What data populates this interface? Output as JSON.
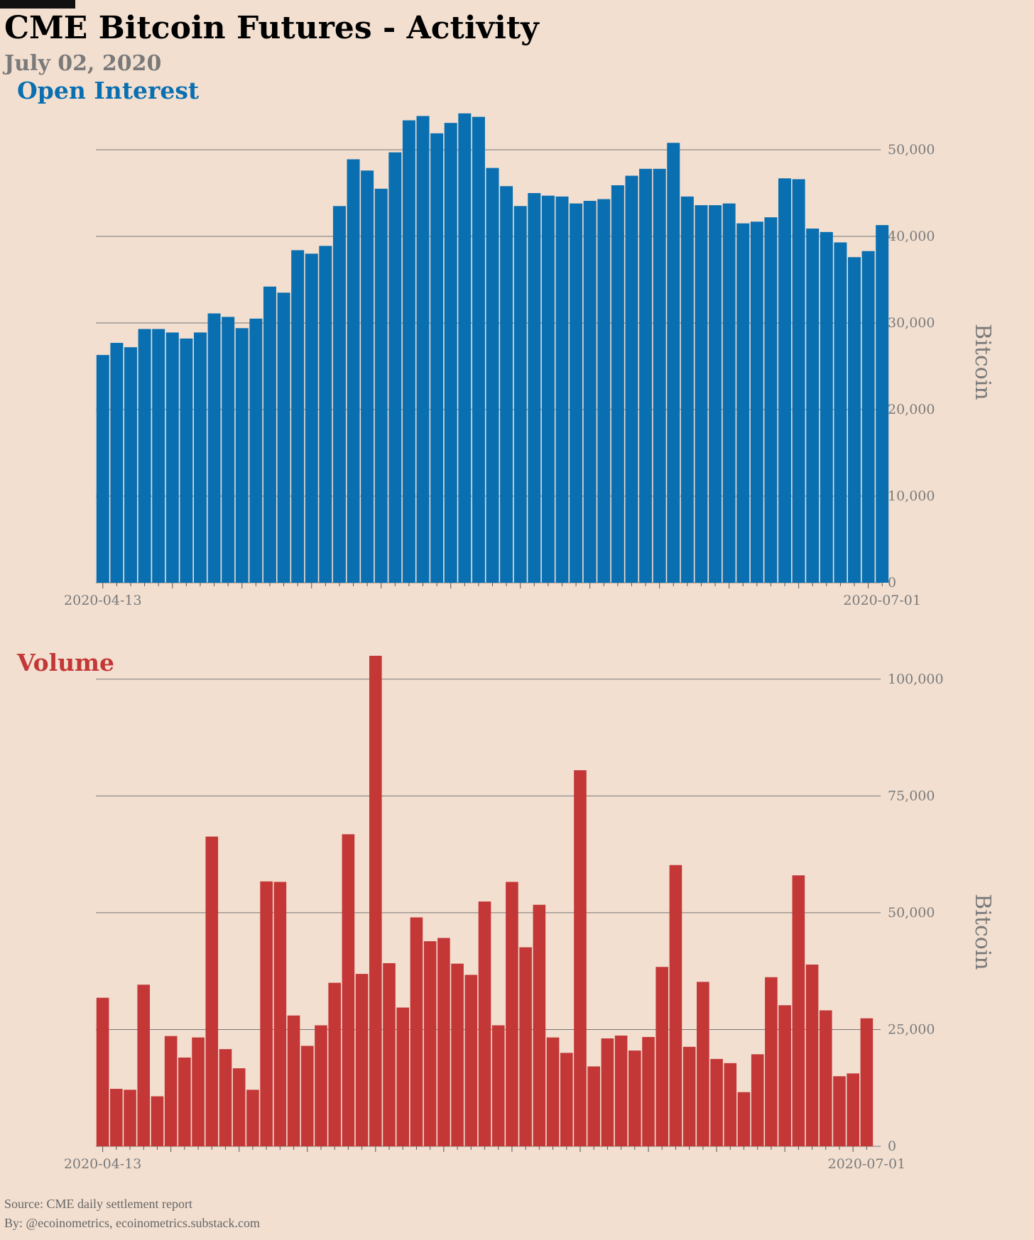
{
  "page": {
    "title": "CME Bitcoin Futures - Activity",
    "subtitle": "July 02, 2020",
    "source": "Source: CME daily settlement report",
    "byline": "By: @ecoinometrics, ecoinometrics.substack.com"
  },
  "colors": {
    "background": "#f2dfd0",
    "open_interest": "#0a6fb0",
    "volume": "#c33737",
    "grid": "#777777",
    "axis_text": "#7a7a7a"
  },
  "chart_data": [
    {
      "type": "bar",
      "title": "Open Interest",
      "ylabel": "Bitcoin",
      "ylim": [
        0,
        55000
      ],
      "yticks": [
        0,
        10000,
        20000,
        30000,
        40000,
        50000
      ],
      "ytick_labels": [
        "0",
        "10,000",
        "20,000",
        "30,000",
        "40,000",
        "50,000"
      ],
      "x_start_label": "2020-04-13",
      "x_end_label": "2020-07-01",
      "x_range": [
        "2020-04-13",
        "2020-07-01"
      ],
      "grid": true,
      "axis_position": "right",
      "values": [
        26300,
        27700,
        27200,
        29300,
        29300,
        28900,
        28200,
        28900,
        31100,
        30700,
        29400,
        30500,
        34200,
        33500,
        38400,
        38000,
        38900,
        43500,
        48900,
        47600,
        45500,
        49700,
        53400,
        53900,
        51900,
        53100,
        54200,
        53800,
        47900,
        45800,
        43500,
        45000,
        44700,
        44600,
        43800,
        44100,
        44300,
        45900,
        47000,
        47800,
        47800,
        50800,
        44600,
        43600,
        43600,
        43800,
        41500,
        41700,
        42200,
        46700,
        46600,
        40900,
        40500,
        39300,
        37600,
        38300,
        41300
      ]
    },
    {
      "type": "bar",
      "title": "Volume",
      "ylabel": "Bitcoin",
      "ylim": [
        0,
        110000
      ],
      "yticks": [
        0,
        25000,
        50000,
        75000,
        100000
      ],
      "ytick_labels": [
        "0",
        "25,000",
        "50,000",
        "75,000",
        "100,000"
      ],
      "x_start_label": "2020-04-13",
      "x_end_label": "2020-07-01",
      "x_range": [
        "2020-04-13",
        "2020-07-01"
      ],
      "grid": true,
      "axis_position": "right",
      "values": [
        31800,
        12300,
        12100,
        34600,
        10700,
        23600,
        19000,
        23300,
        66300,
        20800,
        16700,
        12100,
        56700,
        56600,
        28000,
        21500,
        25900,
        35000,
        66800,
        36900,
        105000,
        39200,
        29700,
        49000,
        43900,
        44600,
        39100,
        36700,
        52400,
        25900,
        56600,
        42600,
        51700,
        23300,
        20000,
        80500,
        17100,
        23100,
        23700,
        20500,
        23400,
        38400,
        60200,
        21300,
        35200,
        18700,
        17800,
        11600,
        19700,
        36200,
        30200,
        58000,
        38900,
        29100,
        15000,
        15600,
        27400
      ]
    }
  ]
}
